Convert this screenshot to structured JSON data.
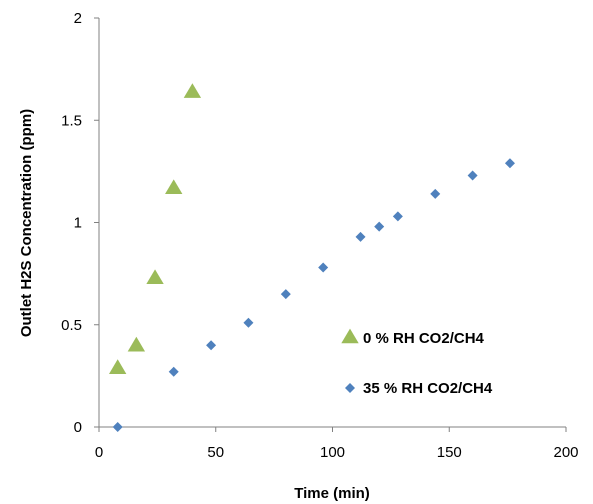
{
  "chart_data": {
    "type": "scatter",
    "title": "",
    "xlabel": "Time (min)",
    "ylabel": "Outlet H2S Concentration (ppm)",
    "xlim": [
      0,
      200
    ],
    "ylim": [
      0,
      2
    ],
    "xticks": [
      0,
      50,
      100,
      150,
      200
    ],
    "yticks": [
      0,
      0.5,
      1,
      1.5,
      2
    ],
    "xtick_labels": [
      "0",
      "50",
      "100",
      "150",
      "200"
    ],
    "ytick_labels": [
      "0",
      "0.5",
      "1",
      "1.5",
      "2"
    ],
    "grid": false,
    "legend_placement": "inside-bottom-right",
    "series": [
      {
        "name": "0 % RH CO2/CH4",
        "marker": "triangle",
        "color": "#9BBB59",
        "x": [
          8,
          16,
          24,
          32,
          40
        ],
        "y": [
          0.29,
          0.4,
          0.73,
          1.17,
          1.64
        ]
      },
      {
        "name": "35 % RH CO2/CH4",
        "marker": "diamond",
        "color": "#4F81BD",
        "x": [
          8,
          32,
          48,
          64,
          80,
          96,
          112,
          120,
          128,
          144,
          160,
          176
        ],
        "y": [
          0.0,
          0.27,
          0.4,
          0.51,
          0.65,
          0.78,
          0.93,
          0.98,
          1.03,
          1.14,
          1.23,
          1.29
        ]
      }
    ]
  }
}
